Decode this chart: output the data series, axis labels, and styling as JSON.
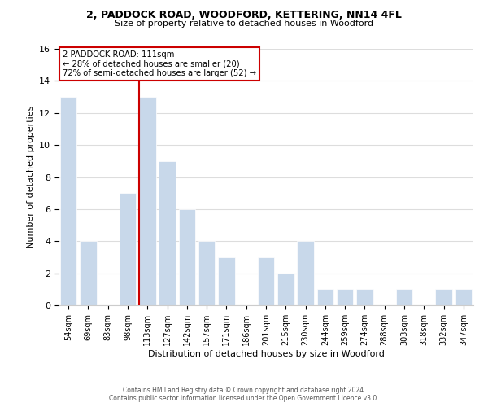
{
  "title_line1": "2, PADDOCK ROAD, WOODFORD, KETTERING, NN14 4FL",
  "title_line2": "Size of property relative to detached houses in Woodford",
  "xlabel": "Distribution of detached houses by size in Woodford",
  "ylabel": "Number of detached properties",
  "categories": [
    "54sqm",
    "69sqm",
    "83sqm",
    "98sqm",
    "113sqm",
    "127sqm",
    "142sqm",
    "157sqm",
    "171sqm",
    "186sqm",
    "201sqm",
    "215sqm",
    "230sqm",
    "244sqm",
    "259sqm",
    "274sqm",
    "288sqm",
    "303sqm",
    "318sqm",
    "332sqm",
    "347sqm"
  ],
  "values": [
    13,
    4,
    0,
    7,
    13,
    9,
    6,
    4,
    3,
    0,
    3,
    2,
    4,
    1,
    1,
    1,
    0,
    1,
    0,
    1,
    1
  ],
  "highlight_index": 4,
  "bar_color": "#c8d8ea",
  "highlight_line_color": "#cc0000",
  "ylim": [
    0,
    16
  ],
  "yticks": [
    0,
    2,
    4,
    6,
    8,
    10,
    12,
    14,
    16
  ],
  "annotation_title": "2 PADDOCK ROAD: 111sqm",
  "annotation_line1": "← 28% of detached houses are smaller (20)",
  "annotation_line2": "72% of semi-detached houses are larger (52) →",
  "annotation_box_color": "#ffffff",
  "annotation_border_color": "#cc0000",
  "footer_line1": "Contains HM Land Registry data © Crown copyright and database right 2024.",
  "footer_line2": "Contains public sector information licensed under the Open Government Licence v3.0.",
  "grid_color": "#dddddd",
  "background_color": "#ffffff"
}
